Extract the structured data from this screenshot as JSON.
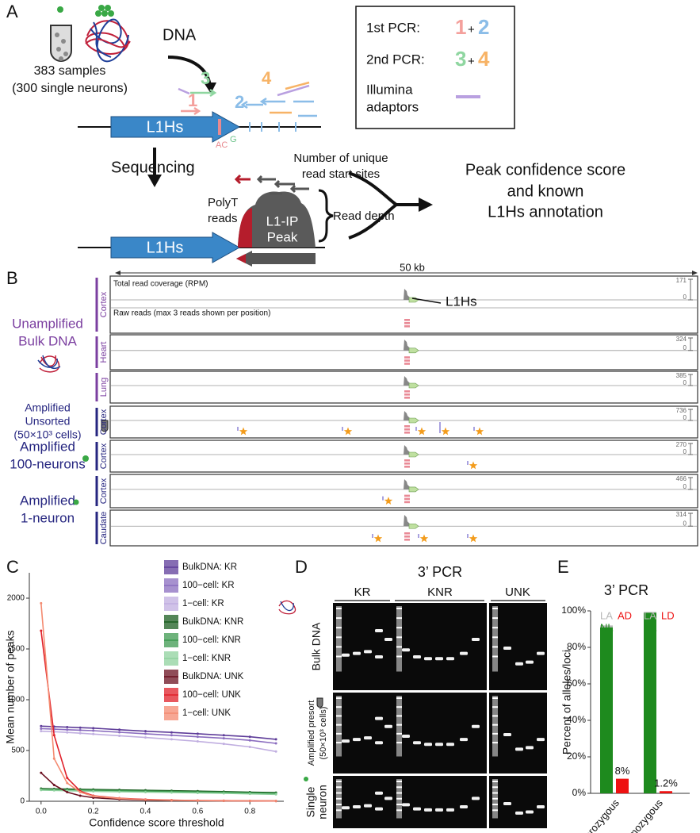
{
  "panel_a": {
    "label": "A",
    "dna": "DNA",
    "samples": [
      "383 samples",
      "(300 single neurons)"
    ],
    "element": "L1Hs",
    "primers": [
      "1",
      "2",
      "3",
      "4"
    ],
    "plus": "+",
    "bases": [
      "AC",
      "G"
    ],
    "legend": {
      "first": "1st PCR:",
      "second": "2nd PCR:",
      "adaptors": [
        "Illumina",
        "adaptors"
      ]
    },
    "sequencing": "Sequencing",
    "unique": [
      "Number of unique",
      "read start sites"
    ],
    "polyt": [
      "PolyT",
      "reads"
    ],
    "peak": [
      "L1-IP",
      "Peak"
    ],
    "depth": "Read depth",
    "result": [
      "Peak confidence score",
      "and known",
      "L1Hs annotation"
    ]
  },
  "panel_b": {
    "label": "B",
    "scale": "50 kb",
    "coverage": "Total read coverage (RPM)",
    "raw": "Raw reads (max 3 reads shown per position)",
    "element": "L1Hs",
    "groups": [
      {
        "lines": [
          "Unamplified",
          "Bulk DNA"
        ],
        "color": "#7b3fa0"
      },
      {
        "lines": [
          "Amplified",
          "Unsorted",
          "(50×10³ cells)"
        ],
        "color": "#262680"
      },
      {
        "lines": [
          "Amplified",
          "100-neurons"
        ],
        "color": "#262680"
      },
      {
        "lines": [
          "Amplified",
          "1-neuron"
        ],
        "color": "#262680"
      }
    ],
    "tracks": [
      {
        "tissue": "Cortex",
        "scale": [
          0,
          171
        ]
      },
      {
        "tissue": "Heart",
        "scale": [
          0,
          324
        ]
      },
      {
        "tissue": "Lung",
        "scale": [
          0,
          385
        ]
      },
      {
        "tissue": "Cortex",
        "scale": [
          0,
          736
        ]
      },
      {
        "tissue": "Cortex",
        "scale": [
          0,
          270
        ]
      },
      {
        "tissue": "Cortex",
        "scale": [
          0,
          466
        ]
      },
      {
        "tissue": "Caudate",
        "scale": [
          0,
          314
        ]
      }
    ]
  },
  "panel_c_label": "C",
  "panel_d": {
    "label": "D",
    "title": "3’ PCR",
    "columns": [
      "KR",
      "KNR",
      "UNK"
    ],
    "rows": [
      [
        "Bulk DNA"
      ],
      [
        "Amplified presort",
        "(50×10³ cells)"
      ],
      [
        "Single",
        "neuron"
      ]
    ]
  },
  "panel_e_label": "E",
  "chart_data": [
    {
      "type": "line",
      "xlabel": "Confidence score threshold",
      "ylabel": "Mean number of peaks",
      "x": [
        0,
        0.05,
        0.1,
        0.15,
        0.2,
        0.3,
        0.4,
        0.5,
        0.6,
        0.7,
        0.8,
        0.9
      ],
      "xlim": [
        -0.045,
        0.93
      ],
      "ylim": [
        0,
        2250
      ],
      "xticks": [
        {
          "value": 0,
          "label": "0.0"
        },
        0.2,
        0.4,
        0.6,
        0.8
      ],
      "yticks": [
        0,
        500,
        1000,
        1500,
        2000
      ],
      "series": [
        {
          "name": "BulkDNA: KR",
          "color": "#5e3c99",
          "values": [
            740,
            735,
            730,
            725,
            720,
            705,
            690,
            678,
            665,
            650,
            635,
            610
          ]
        },
        {
          "name": "100−cell: KR",
          "color": "#8a6cbf",
          "values": [
            715,
            710,
            705,
            700,
            695,
            680,
            665,
            650,
            635,
            620,
            600,
            570
          ]
        },
        {
          "name": "1−cell: KR",
          "color": "#c0aee0",
          "values": [
            690,
            685,
            678,
            670,
            662,
            645,
            628,
            610,
            590,
            565,
            535,
            490
          ]
        },
        {
          "name": "BulkDNA: KNR",
          "color": "#1b5e20",
          "values": [
            125,
            122,
            120,
            118,
            116,
            112,
            108,
            104,
            100,
            95,
            90,
            85
          ]
        },
        {
          "name": "100−cell: KNR",
          "color": "#3d9a50",
          "values": [
            118,
            115,
            112,
            110,
            108,
            104,
            100,
            96,
            92,
            88,
            83,
            78
          ]
        },
        {
          "name": "1−cell: KNR",
          "color": "#8fd19e",
          "values": [
            110,
            107,
            104,
            101,
            98,
            94,
            90,
            86,
            82,
            78,
            73,
            68
          ]
        },
        {
          "name": "BulkDNA: UNK",
          "color": "#6b1020",
          "values": [
            280,
            160,
            90,
            55,
            35,
            20,
            12,
            8,
            6,
            4,
            3,
            2
          ]
        },
        {
          "name": "100−cell: UNK",
          "color": "#e0202a",
          "values": [
            1680,
            650,
            230,
            100,
            55,
            30,
            18,
            12,
            8,
            6,
            4,
            3
          ]
        },
        {
          "name": "1−cell: UNK",
          "color": "#f48a70",
          "values": [
            1950,
            420,
            180,
            90,
            50,
            28,
            16,
            10,
            7,
            5,
            4,
            3
          ]
        }
      ]
    },
    {
      "type": "bar",
      "title": "3’ PCR",
      "ylabel": "Percent of alleles/loci",
      "categories": [
        "Heterozygous",
        "Homozygous"
      ],
      "ylim": [
        0,
        100
      ],
      "yticks": [
        {
          "value": 0,
          "label": "0%"
        },
        {
          "value": 20,
          "label": "20%"
        },
        {
          "value": 40,
          "label": "40%"
        },
        {
          "value": 60,
          "label": "60%"
        },
        {
          "value": 80,
          "label": "80%"
        },
        {
          "value": 100,
          "label": "100%"
        }
      ],
      "series": [
        {
          "name": "NL",
          "color": "#1e8a1e",
          "values": [
            91,
            99
          ]
        },
        {
          "name": "LA",
          "color": "#b8b8b8",
          "values": [
            1,
            0.4
          ]
        },
        {
          "names": [
            "AD",
            "LD"
          ],
          "color": "#ee1111",
          "values": [
            8,
            1.2
          ],
          "value_labels": [
            "8%",
            "1.2%"
          ]
        }
      ]
    }
  ]
}
